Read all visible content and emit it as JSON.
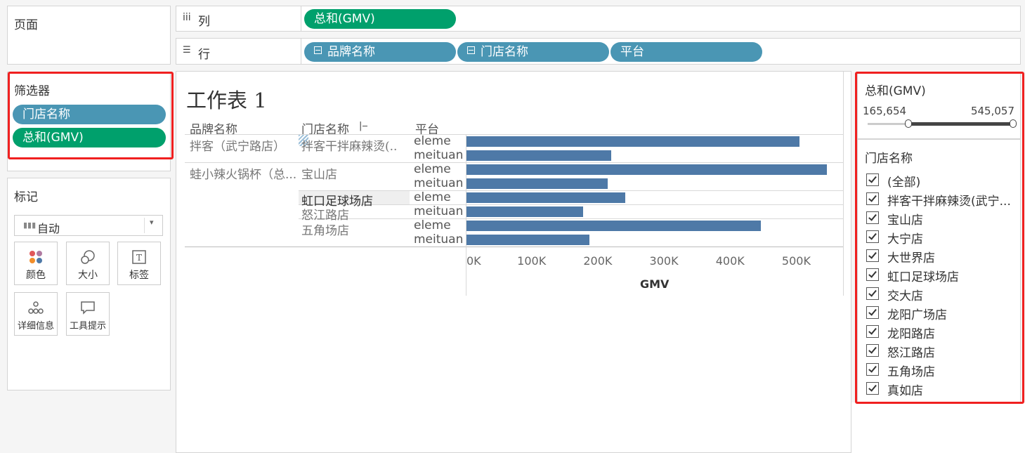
{
  "shelves": {
    "pages_label": "页面",
    "columns": {
      "icon": "iii",
      "label": "列",
      "pills": [
        "总和(GMV)"
      ]
    },
    "rows": {
      "icon": "☰",
      "label": "行",
      "pills": [
        "品牌名称",
        "门店名称",
        "平台"
      ]
    }
  },
  "filters": {
    "title": "筛选器",
    "items": [
      "门店名称",
      "总和(GMV)"
    ]
  },
  "marks": {
    "title": "标记",
    "type_value": "自动",
    "buttons": [
      "颜色",
      "大小",
      "标签",
      "详细信息",
      "工具提示"
    ]
  },
  "sheet": {
    "title": "工作表 1",
    "headers": {
      "brand": "品牌名称",
      "store": "门店名称",
      "platform": "平台"
    },
    "brands": [
      "拌客（武宁路店）",
      "蛙小辣火锅杯（总..."
    ],
    "stores": [
      "拌客干拌麻辣烫(..",
      "宝山店",
      "虹口足球场店",
      "怒江路店",
      "五角场店"
    ]
  },
  "chart_data": {
    "type": "bar",
    "orientation": "horizontal",
    "categories": [
      "eleme",
      "meituan",
      "eleme",
      "meituan",
      "eleme",
      "meituan",
      "eleme",
      "meituan"
    ],
    "values": [
      503000,
      219000,
      545057,
      213000,
      240000,
      176000,
      445000,
      186000
    ],
    "xlabel": "GMV",
    "xlim": [
      0,
      550000
    ],
    "ticks": [
      "0K",
      "100K",
      "200K",
      "300K",
      "400K",
      "500K"
    ],
    "tick_values": [
      0,
      100000,
      200000,
      300000,
      400000,
      500000
    ],
    "color": "#4e79a7"
  },
  "gmv_filter": {
    "title": "总和(GMV)",
    "min": "165,654",
    "max": "545,057"
  },
  "store_filter": {
    "title": "门店名称",
    "items": [
      "(全部)",
      "拌客干拌麻辣烫(武宁...",
      "宝山店",
      "大宁店",
      "大世界店",
      "虹口足球场店",
      "交大店",
      "龙阳广场店",
      "龙阳路店",
      "怒江路店",
      "五角场店",
      "真如店"
    ]
  }
}
